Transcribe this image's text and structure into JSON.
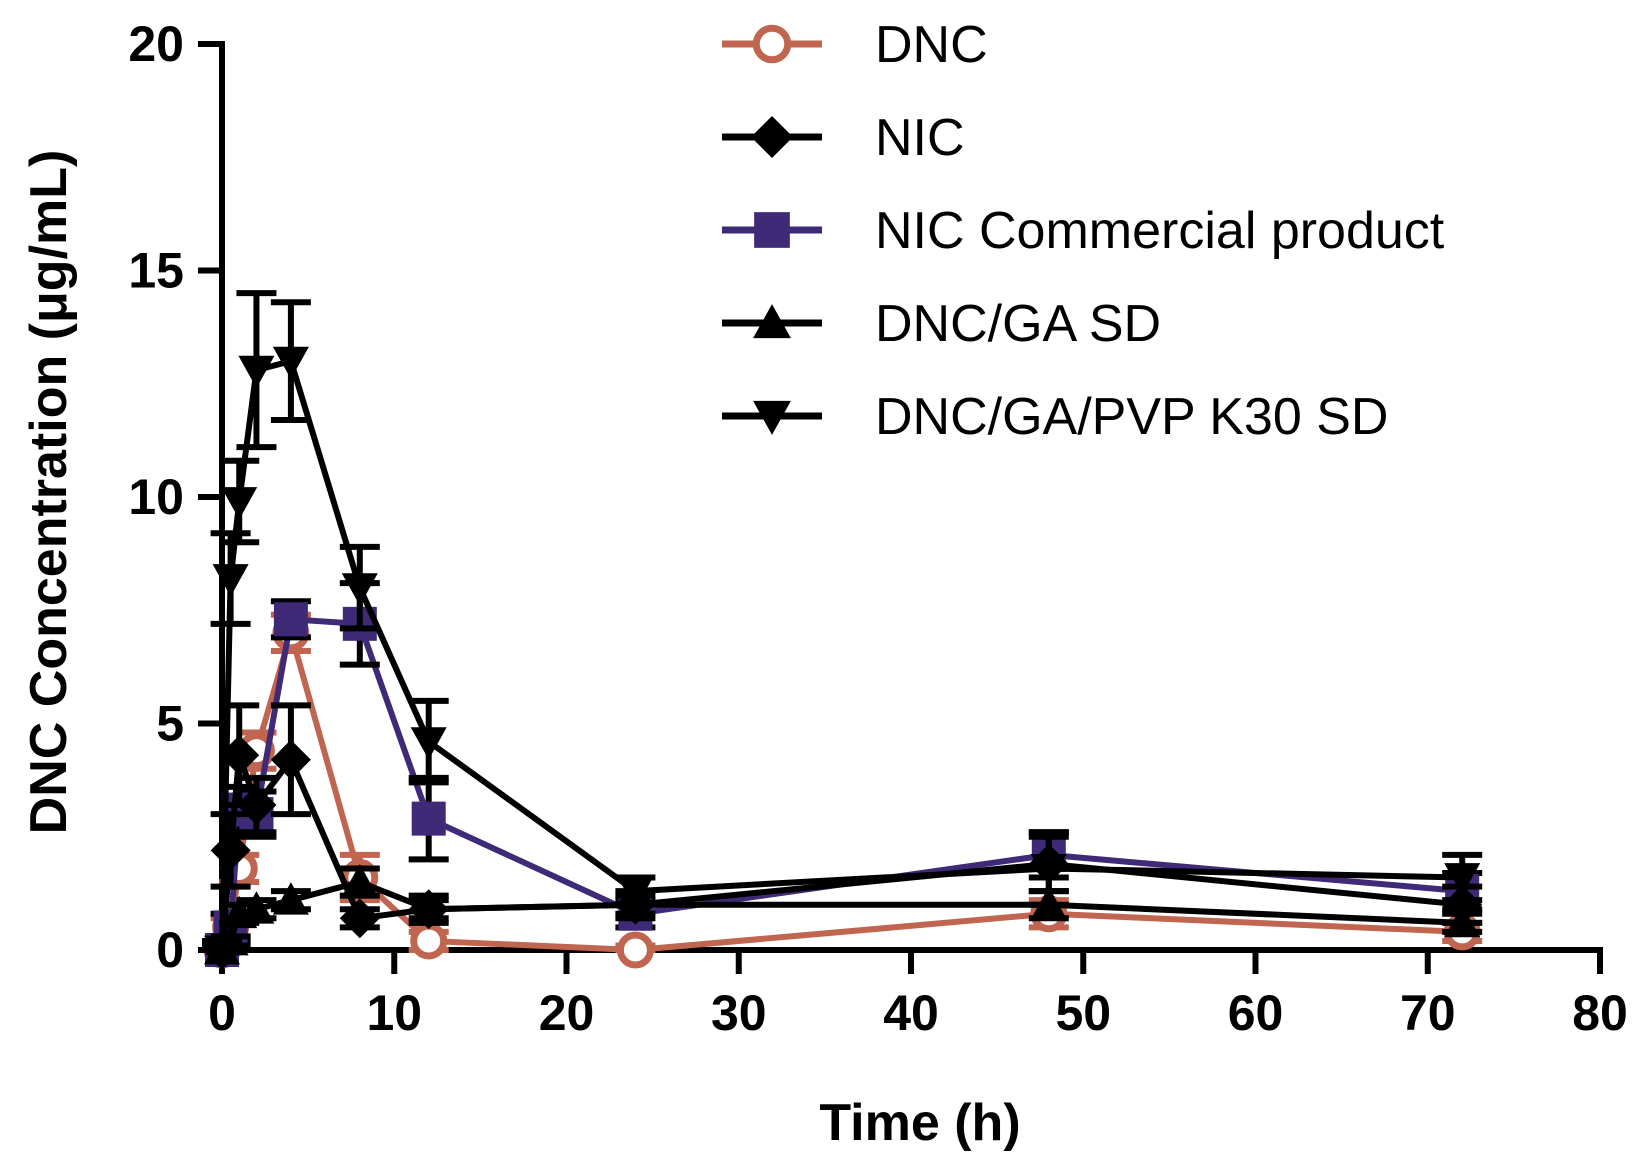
{
  "chart_data": {
    "type": "line",
    "xlabel": "Time (h)",
    "ylabel": "DNC Concentration (μg/mL)",
    "xlim": [
      0,
      80
    ],
    "ylim": [
      0,
      20
    ],
    "xticks": [
      0,
      10,
      20,
      30,
      40,
      50,
      60,
      70,
      80
    ],
    "yticks": [
      0,
      5,
      10,
      15,
      20
    ],
    "grid": false,
    "legend": "top-right",
    "series": [
      {
        "name": "DNC",
        "color": "#c0654f",
        "marker": "open-circle",
        "x": [
          0,
          0.5,
          1,
          2,
          4,
          8,
          12,
          24,
          48,
          72
        ],
        "y": [
          0,
          0.5,
          1.8,
          4.4,
          7.0,
          1.6,
          0.2,
          0.0,
          0.8,
          0.4
        ],
        "err": [
          0.1,
          0.2,
          0.3,
          0.4,
          0.4,
          0.5,
          0.2,
          0.1,
          0.3,
          0.2
        ]
      },
      {
        "name": "NIC",
        "color": "#000000",
        "marker": "diamond",
        "x": [
          0,
          0.5,
          1,
          2,
          4,
          8,
          12,
          24,
          48,
          72
        ],
        "y": [
          0,
          2.2,
          4.3,
          3.2,
          4.2,
          0.7,
          0.9,
          1.0,
          1.9,
          1.0
        ],
        "err": [
          0.1,
          0.8,
          1.1,
          0.6,
          1.2,
          0.2,
          0.3,
          0.3,
          0.6,
          0.4
        ]
      },
      {
        "name": "NIC Commercial product",
        "color": "#3f2a78",
        "marker": "square",
        "x": [
          0,
          0.5,
          1,
          2,
          4,
          8,
          12,
          24,
          48,
          72
        ],
        "y": [
          0,
          0.5,
          3.1,
          3.0,
          7.3,
          7.2,
          2.9,
          0.8,
          2.1,
          1.3
        ],
        "err": [
          0.1,
          0.3,
          0.5,
          0.5,
          0.4,
          0.9,
          0.9,
          0.3,
          0.5,
          0.4
        ]
      },
      {
        "name": "DNC/GA SD",
        "color": "#000000",
        "marker": "triangle-up",
        "x": [
          0,
          0.5,
          1,
          2,
          4,
          8,
          12,
          24,
          48,
          72
        ],
        "y": [
          0,
          0.2,
          0.8,
          0.9,
          1.1,
          1.5,
          0.9,
          1.0,
          1.0,
          0.6
        ],
        "err": [
          0.1,
          0.1,
          0.2,
          0.2,
          0.2,
          0.3,
          0.2,
          0.2,
          0.3,
          0.2
        ]
      },
      {
        "name": "DNC/GA/PVP K30 SD",
        "color": "#000000",
        "marker": "triangle-down",
        "x": [
          0,
          0.5,
          1,
          2,
          4,
          8,
          12,
          24,
          48,
          72
        ],
        "y": [
          0,
          8.2,
          9.9,
          12.8,
          13.0,
          8.0,
          4.6,
          1.3,
          1.8,
          1.6
        ],
        "err": [
          0.2,
          1.0,
          0.9,
          1.7,
          1.3,
          0.9,
          0.9,
          0.3,
          0.8,
          0.5
        ]
      }
    ]
  }
}
